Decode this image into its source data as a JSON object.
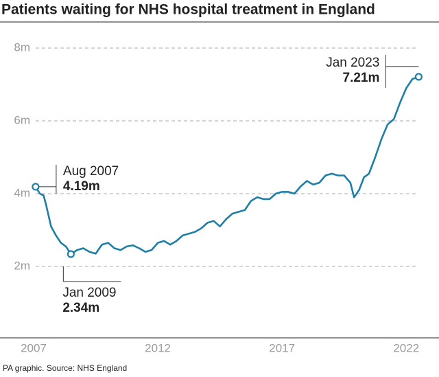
{
  "chart_data": {
    "type": "line",
    "title": "Patients waiting for NHS hospital treatment in England",
    "source": "PA graphic. Source: NHS England",
    "x": [
      2007.58,
      2007.75,
      2007.9,
      2008.0,
      2008.2,
      2008.4,
      2008.6,
      2008.8,
      2009.0,
      2009.25,
      2009.5,
      2009.75,
      2010.0,
      2010.25,
      2010.5,
      2010.75,
      2011.0,
      2011.25,
      2011.5,
      2011.75,
      2012.0,
      2012.25,
      2012.5,
      2012.75,
      2013.0,
      2013.25,
      2013.5,
      2013.75,
      2014.0,
      2014.25,
      2014.5,
      2014.75,
      2015.0,
      2015.25,
      2015.5,
      2015.75,
      2016.0,
      2016.25,
      2016.5,
      2016.75,
      2017.0,
      2017.25,
      2017.5,
      2017.75,
      2018.0,
      2018.25,
      2018.5,
      2018.75,
      2019.0,
      2019.25,
      2019.5,
      2019.75,
      2020.0,
      2020.25,
      2020.4,
      2020.6,
      2020.8,
      2021.0,
      2021.25,
      2021.5,
      2021.75,
      2022.0,
      2022.25,
      2022.5,
      2022.75,
      2023.0
    ],
    "series": [
      {
        "name": "Patients waiting",
        "color": "#1f7ea6",
        "values": [
          4.19,
          4.0,
          3.95,
          3.7,
          3.1,
          2.85,
          2.65,
          2.55,
          2.34,
          2.45,
          2.5,
          2.4,
          2.35,
          2.6,
          2.65,
          2.5,
          2.45,
          2.55,
          2.58,
          2.5,
          2.4,
          2.45,
          2.65,
          2.7,
          2.6,
          2.7,
          2.85,
          2.9,
          2.95,
          3.05,
          3.2,
          3.25,
          3.1,
          3.3,
          3.45,
          3.5,
          3.55,
          3.8,
          3.9,
          3.85,
          3.85,
          4.0,
          4.05,
          4.05,
          4.0,
          4.2,
          4.35,
          4.25,
          4.3,
          4.5,
          4.55,
          4.5,
          4.5,
          4.3,
          3.9,
          4.1,
          4.45,
          4.55,
          5.0,
          5.5,
          5.9,
          6.05,
          6.5,
          6.9,
          7.15,
          7.21
        ]
      }
    ],
    "annotations": [
      {
        "date": "Aug 2007",
        "value": "4.19m"
      },
      {
        "date": "Jan 2009",
        "value": "2.34m"
      },
      {
        "date": "Jan 2023",
        "value": "7.21m"
      }
    ],
    "xlim": [
      2007.5,
      2023.1
    ],
    "xticks": [
      {
        "value": 2007.5,
        "label": "2007"
      },
      {
        "value": 2012.5,
        "label": "2012"
      },
      {
        "value": 2017.5,
        "label": "2017"
      },
      {
        "value": 2022.5,
        "label": "2022"
      }
    ],
    "ylim": [
      0,
      8
    ],
    "yticks": [
      {
        "value": 2,
        "label": "2m"
      },
      {
        "value": 4,
        "label": "4m"
      },
      {
        "value": 6,
        "label": "6m"
      },
      {
        "value": 8,
        "label": "8m"
      }
    ],
    "grid": true
  }
}
